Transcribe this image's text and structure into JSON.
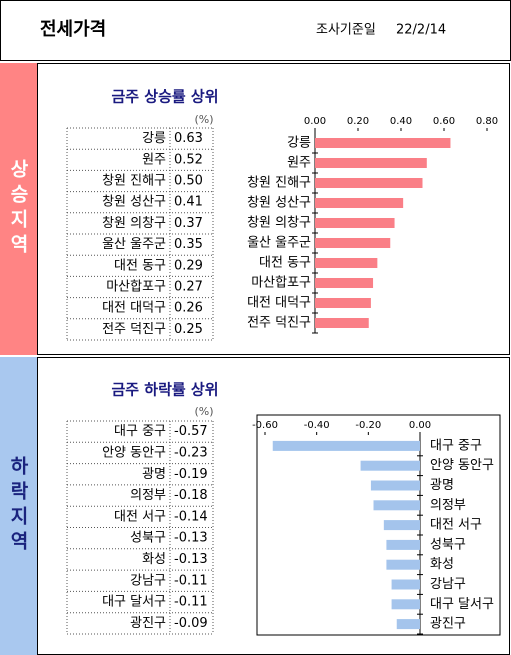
{
  "header": {
    "title": "전세가격",
    "date_label": "조사기준일",
    "date": "22/2/14"
  },
  "chart_data": [
    {
      "type": "bar",
      "orientation": "horizontal",
      "section": "상승지역",
      "title": "금주 상승률 상위",
      "unit": "(%)",
      "categories": [
        "강릉",
        "원주",
        "창원 진해구",
        "창원 성산구",
        "창원 의창구",
        "울산 울주군",
        "대전 동구",
        "마산합포구",
        "대전 대덕구",
        "전주 덕진구"
      ],
      "values": [
        0.63,
        0.52,
        0.5,
        0.41,
        0.37,
        0.35,
        0.29,
        0.27,
        0.26,
        0.25
      ],
      "value_labels": [
        "0.63",
        "0.52",
        "0.50",
        "0.41",
        "0.37",
        "0.35",
        "0.29",
        "0.27",
        "0.26",
        "0.25"
      ],
      "color": "#fa7f87",
      "xlim": [
        0,
        0.8
      ],
      "xticks": [
        {
          "value": 0,
          "label": "0.00"
        },
        {
          "value": 0.2,
          "label": "0.20"
        },
        {
          "value": 0.4,
          "label": "0.40"
        },
        {
          "value": 0.6,
          "label": "0.60"
        },
        {
          "value": 0.8,
          "label": "0.80"
        }
      ]
    },
    {
      "type": "bar",
      "orientation": "horizontal",
      "section": "하락지역",
      "title": "금주 하락률 상위",
      "unit": "(%)",
      "categories": [
        "대구 중구",
        "안양 동안구",
        "광명",
        "의정부",
        "대전 서구",
        "성북구",
        "화성",
        "강남구",
        "대구 달서구",
        "광진구"
      ],
      "values": [
        -0.57,
        -0.23,
        -0.19,
        -0.18,
        -0.14,
        -0.13,
        -0.13,
        -0.11,
        -0.11,
        -0.09
      ],
      "value_labels": [
        "-0.57",
        "-0.23",
        "-0.19",
        "-0.18",
        "-0.14",
        "-0.13",
        "-0.13",
        "-0.11",
        "-0.11",
        "-0.09"
      ],
      "color": "#a4c4ec",
      "xlim": [
        -0.6,
        0
      ],
      "xticks": [
        {
          "value": -0.6,
          "label": "-0.60"
        },
        {
          "value": -0.4,
          "label": "-0.40"
        },
        {
          "value": -0.2,
          "label": "-0.20"
        },
        {
          "value": 0,
          "label": "0.00"
        }
      ]
    }
  ]
}
